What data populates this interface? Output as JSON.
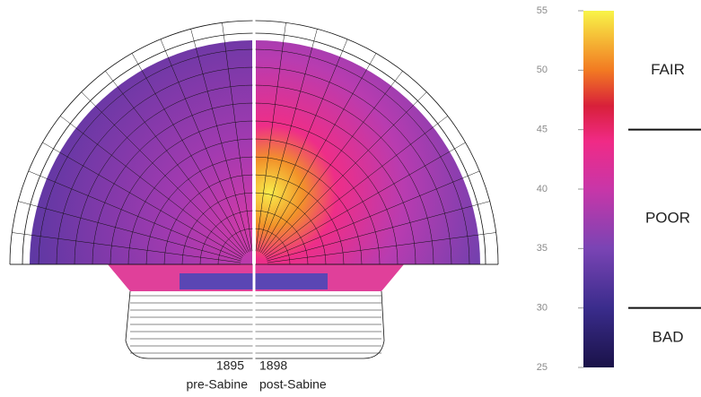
{
  "colorbar": {
    "lim": [
      25,
      55
    ],
    "ticks": [
      25,
      30,
      35,
      40,
      45,
      50,
      55
    ],
    "stops": [
      {
        "value": 25,
        "color": "#1a1248"
      },
      {
        "value": 30,
        "color": "#3a2c8c"
      },
      {
        "value": 35,
        "color": "#7a44b4"
      },
      {
        "value": 40,
        "color": "#c836a8"
      },
      {
        "value": 44,
        "color": "#f02a86"
      },
      {
        "value": 47,
        "color": "#d8203a"
      },
      {
        "value": 50,
        "color": "#f27a22"
      },
      {
        "value": 55,
        "color": "#f8f448"
      }
    ]
  },
  "ratings": [
    {
      "label": "FAIR",
      "from": 45,
      "to": 55
    },
    {
      "label": "POOR",
      "from": 30,
      "to": 45
    },
    {
      "label": "BAD",
      "from": 25,
      "to": 30
    }
  ],
  "panels": [
    {
      "year": "1895",
      "label": "pre-Sabine"
    },
    {
      "year": "1898",
      "label": "post-Sabine"
    }
  ]
}
